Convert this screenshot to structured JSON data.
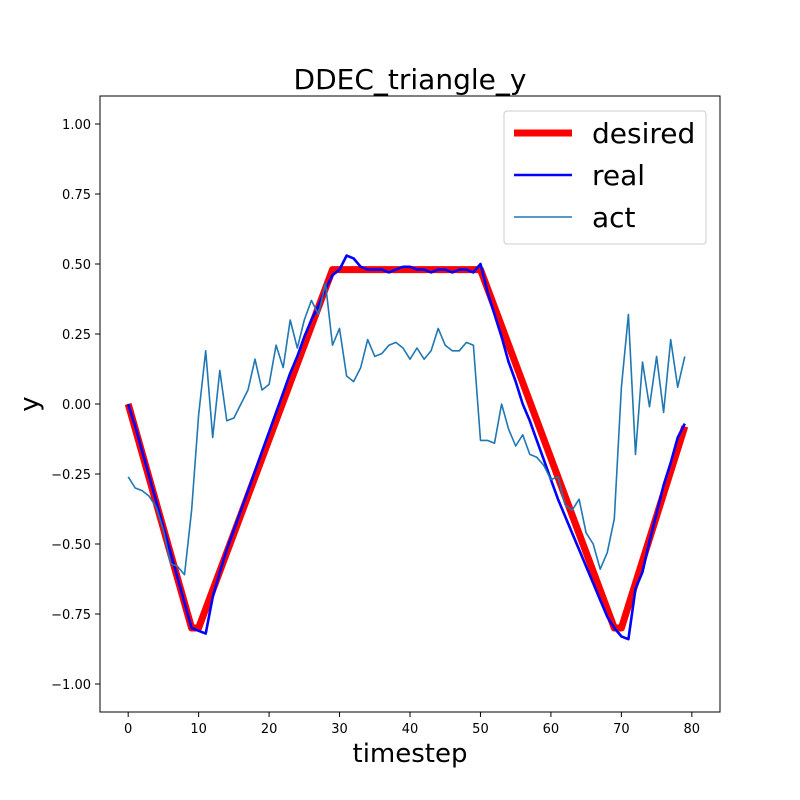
{
  "chart_data": {
    "type": "line",
    "title": "DDEC_triangle_y",
    "xlabel": "timestep",
    "ylabel": "y",
    "xlim": [
      -4,
      84
    ],
    "ylim": [
      -1.1,
      1.1
    ],
    "xticks": [
      0,
      10,
      20,
      30,
      40,
      50,
      60,
      70,
      80
    ],
    "yticks": [
      -1.0,
      -0.75,
      -0.5,
      -0.25,
      0.0,
      0.25,
      0.5,
      0.75,
      1.0
    ],
    "ytick_labels": [
      "−1.00",
      "−0.75",
      "−0.50",
      "−0.25",
      "0.00",
      "0.25",
      "0.50",
      "0.75",
      "1.00"
    ],
    "legend_position": "top-right",
    "grid": false,
    "series": [
      {
        "name": "desired",
        "color": "#ff0000",
        "x": [
          0,
          9,
          10,
          29,
          30,
          49,
          50,
          69,
          70,
          79
        ],
        "values": [
          0.0,
          -0.8,
          -0.8,
          0.48,
          0.48,
          0.48,
          0.48,
          -0.8,
          -0.8,
          -0.08
        ]
      },
      {
        "name": "real",
        "color": "#0000ff",
        "x": [
          0,
          1,
          2,
          3,
          4,
          5,
          6,
          7,
          8,
          9,
          10,
          11,
          12,
          13,
          14,
          15,
          16,
          17,
          18,
          19,
          20,
          21,
          22,
          23,
          24,
          25,
          26,
          27,
          28,
          29,
          30,
          31,
          32,
          33,
          34,
          35,
          36,
          37,
          38,
          39,
          40,
          41,
          42,
          43,
          44,
          45,
          46,
          47,
          48,
          49,
          50,
          51,
          52,
          53,
          54,
          55,
          56,
          57,
          58,
          59,
          60,
          61,
          62,
          63,
          64,
          65,
          66,
          67,
          68,
          69,
          70,
          71,
          72,
          73,
          74,
          75,
          76,
          77,
          78,
          79
        ],
        "values": [
          0.0,
          -0.08,
          -0.17,
          -0.26,
          -0.35,
          -0.44,
          -0.53,
          -0.62,
          -0.71,
          -0.8,
          -0.81,
          -0.82,
          -0.69,
          -0.6,
          -0.52,
          -0.45,
          -0.38,
          -0.31,
          -0.24,
          -0.17,
          -0.1,
          -0.03,
          0.04,
          0.11,
          0.17,
          0.24,
          0.3,
          0.35,
          0.41,
          0.46,
          0.48,
          0.53,
          0.52,
          0.49,
          0.48,
          0.48,
          0.48,
          0.47,
          0.48,
          0.49,
          0.49,
          0.48,
          0.48,
          0.47,
          0.48,
          0.48,
          0.47,
          0.48,
          0.48,
          0.47,
          0.5,
          0.4,
          0.32,
          0.24,
          0.15,
          0.08,
          0.0,
          -0.06,
          -0.13,
          -0.2,
          -0.27,
          -0.34,
          -0.4,
          -0.46,
          -0.52,
          -0.58,
          -0.64,
          -0.7,
          -0.76,
          -0.8,
          -0.83,
          -0.84,
          -0.66,
          -0.6,
          -0.49,
          -0.39,
          -0.29,
          -0.21,
          -0.12,
          -0.07
        ]
      },
      {
        "name": "act",
        "color": "#1f77b4",
        "x": [
          0,
          1,
          2,
          3,
          4,
          5,
          6,
          7,
          8,
          9,
          10,
          11,
          12,
          13,
          14,
          15,
          16,
          17,
          18,
          19,
          20,
          21,
          22,
          23,
          24,
          25,
          26,
          27,
          28,
          29,
          30,
          31,
          32,
          33,
          34,
          35,
          36,
          37,
          38,
          39,
          40,
          41,
          42,
          43,
          44,
          45,
          46,
          47,
          48,
          49,
          50,
          51,
          52,
          53,
          54,
          55,
          56,
          57,
          58,
          59,
          60,
          61,
          62,
          63,
          64,
          65,
          66,
          67,
          68,
          69,
          70,
          71,
          72,
          73,
          74,
          75,
          76,
          77,
          78,
          79
        ],
        "values": [
          -0.26,
          -0.3,
          -0.31,
          -0.33,
          -0.37,
          -0.45,
          -0.57,
          -0.58,
          -0.61,
          -0.38,
          -0.04,
          0.19,
          -0.12,
          0.12,
          -0.06,
          -0.05,
          0.0,
          0.05,
          0.16,
          0.05,
          0.07,
          0.21,
          0.13,
          0.3,
          0.2,
          0.3,
          0.37,
          0.32,
          0.43,
          0.21,
          0.27,
          0.1,
          0.08,
          0.13,
          0.23,
          0.17,
          0.18,
          0.21,
          0.22,
          0.2,
          0.16,
          0.2,
          0.16,
          0.19,
          0.27,
          0.21,
          0.19,
          0.19,
          0.22,
          0.21,
          -0.13,
          -0.13,
          -0.14,
          0.0,
          -0.09,
          -0.15,
          -0.11,
          -0.18,
          -0.19,
          -0.22,
          -0.27,
          -0.26,
          -0.36,
          -0.38,
          -0.34,
          -0.46,
          -0.5,
          -0.59,
          -0.53,
          -0.41,
          0.06,
          0.32,
          -0.18,
          0.15,
          -0.01,
          0.17,
          -0.03,
          0.23,
          0.06,
          0.17
        ]
      }
    ]
  }
}
